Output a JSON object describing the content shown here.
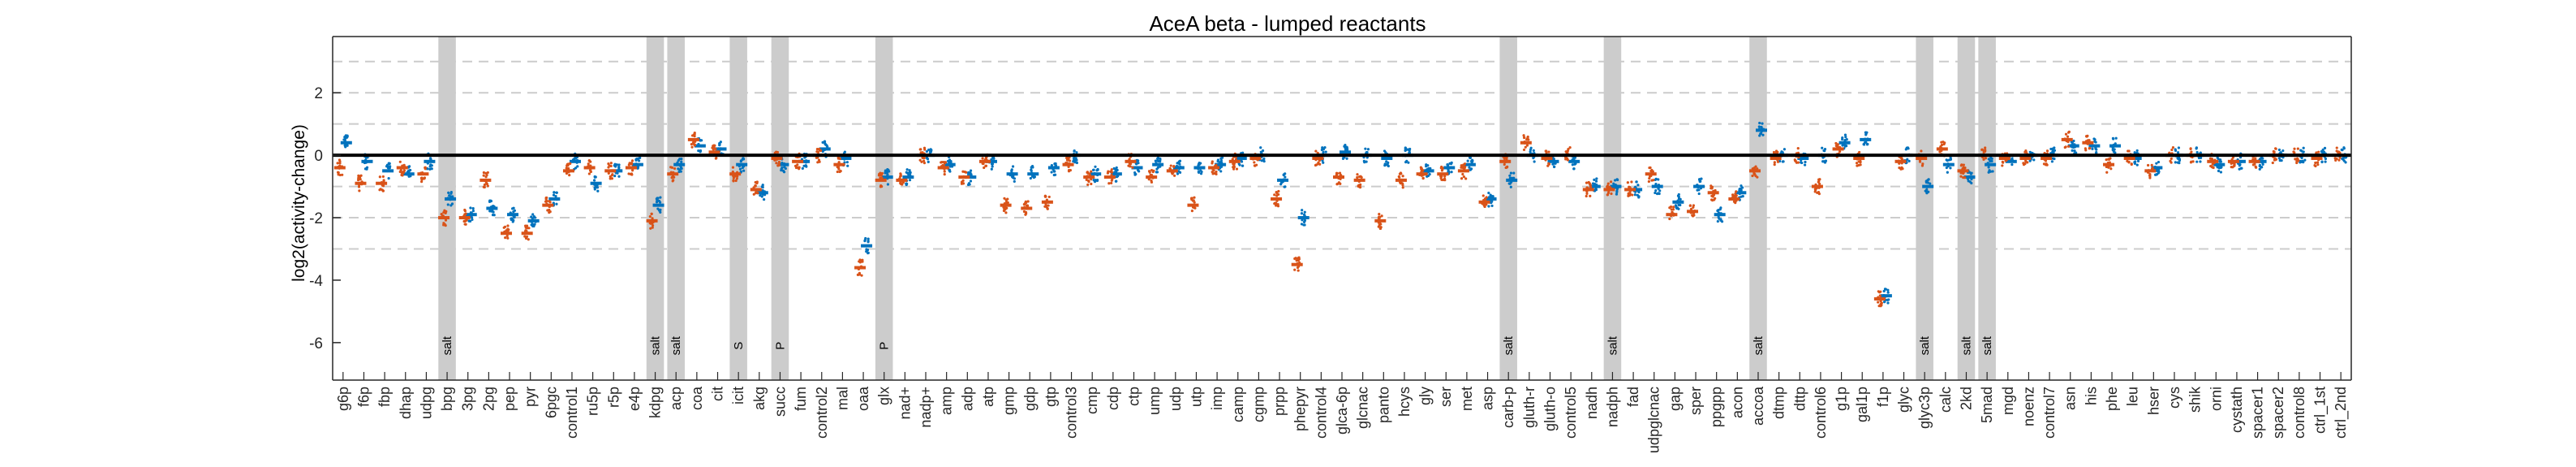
{
  "chart_data": {
    "type": "scatter",
    "title": "AceA beta - lumped reactants",
    "xlabel": "",
    "ylabel": "log2(activity-change)",
    "ylim": [
      -7.2,
      3.8
    ],
    "yticks": [
      -6,
      -4,
      -2,
      0,
      2
    ],
    "ytick_labels": [
      "-6",
      "-4",
      "-2",
      "0",
      "2"
    ],
    "dashed_gridlines_y": [
      -3,
      -2,
      -1,
      1,
      2,
      3
    ],
    "zero_line_y": 0,
    "grid": false,
    "box": true,
    "colors": {
      "series_a": "#0072BD",
      "series_b": "#D95319",
      "series_c": "#4DBEEE",
      "shade": "#cccccc",
      "grid": "#cccccc",
      "zero": "#000000"
    },
    "categories": [
      "g6p",
      "f6p",
      "fbp",
      "dhap",
      "udpg",
      "bpg",
      "3pg",
      "2pg",
      "pep",
      "pyr",
      "6pgc",
      "control1",
      "ru5p",
      "r5p",
      "e4p",
      "kdpg",
      "acp",
      "coa",
      "cit",
      "icit",
      "akg",
      "succ",
      "fum",
      "control2",
      "mal",
      "oaa",
      "glx",
      "nad+",
      "nadp+",
      "amp",
      "adp",
      "atp",
      "gmp",
      "gdp",
      "gtp",
      "control3",
      "cmp",
      "cdp",
      "ctp",
      "ump",
      "udp",
      "utp",
      "imp",
      "camp",
      "cgmp",
      "prpp",
      "phepyr",
      "control4",
      "glca-6p",
      "glcnac",
      "panto",
      "hcys",
      "gly",
      "ser",
      "met",
      "asp",
      "carb-p",
      "gluth-r",
      "gluth-o",
      "control5",
      "nadh",
      "nadph",
      "fad",
      "udpglcnac",
      "gap",
      "sper",
      "ppgpp",
      "acon",
      "accoa",
      "dtmp",
      "dttp",
      "control6",
      "g1p",
      "gal1p",
      "f1p",
      "glyc",
      "glyc3p",
      "calc",
      "2kd",
      "5mad",
      "mgd",
      "noenz",
      "control7",
      "asn",
      "his",
      "phe",
      "leu",
      "hser",
      "cys",
      "shik",
      "orni",
      "cystath",
      "spacer1",
      "spacer2",
      "control8",
      "ctrl_1st",
      "ctrl_2nd"
    ],
    "shaded_categories": [
      "bpg",
      "kdpg",
      "acp",
      "icit",
      "succ",
      "glx",
      "carb-p",
      "nadph",
      "accoa",
      "glyc3p",
      "2kd",
      "5mad"
    ],
    "shade_labels": [
      {
        "category": "bpg",
        "label": "salt"
      },
      {
        "category": "kdpg",
        "label": "salt"
      },
      {
        "category": "acp",
        "label": "salt"
      },
      {
        "category": "icit",
        "label": "S"
      },
      {
        "category": "succ",
        "label": "P"
      },
      {
        "category": "glx",
        "label": "P"
      },
      {
        "category": "carb-p",
        "label": "salt"
      },
      {
        "category": "nadph",
        "label": "salt"
      },
      {
        "category": "accoa",
        "label": "salt"
      },
      {
        "category": "glyc3p",
        "label": "salt"
      },
      {
        "category": "2kd",
        "label": "salt"
      },
      {
        "category": "5mad",
        "label": "salt"
      }
    ],
    "series": [
      {
        "color": "#0072BD",
        "values": [
          0.4,
          -0.2,
          -0.5,
          -0.6,
          -0.2,
          -1.4,
          -1.9,
          -1.7,
          -1.9,
          -2.1,
          -1.4,
          -0.2,
          -0.9,
          -0.5,
          -0.3,
          -1.6,
          -0.3,
          0.3,
          0.2,
          -0.3,
          -1.2,
          -0.3,
          -0.2,
          0.2,
          -0.1,
          -2.9,
          -0.7,
          -0.7,
          0.0,
          -0.3,
          -0.7,
          -0.2,
          -0.6,
          -0.6,
          -0.4,
          0.0,
          -0.6,
          -0.6,
          -0.4,
          -0.3,
          -0.4,
          -0.4,
          -0.3,
          -0.1,
          0.0,
          -0.8,
          -2.0,
          0.0,
          0.1,
          0.0,
          -0.1,
          0.0,
          -0.5,
          -0.4,
          -0.3,
          -1.4,
          -0.8,
          0.0,
          -0.2,
          -0.2,
          -1.0,
          -1.0,
          -1.1,
          -1.0,
          -1.5,
          -1.0,
          -1.9,
          -1.2,
          0.8,
          0.0,
          -0.1,
          0.0,
          0.4,
          0.5,
          -4.5,
          0.0,
          -1.0,
          -0.3,
          -0.7,
          -0.3,
          -0.2,
          0.0,
          0.0,
          0.3,
          0.3,
          0.3,
          -0.1,
          -0.4,
          0.0,
          0.0,
          -0.3,
          -0.2,
          -0.2,
          0.0,
          0.0,
          0.0,
          0.0
        ]
      },
      {
        "color": "#D95319",
        "values": [
          -0.4,
          -0.9,
          -0.9,
          -0.4,
          -0.6,
          -2.0,
          -2.0,
          -0.8,
          -2.5,
          -2.5,
          -1.6,
          -0.5,
          -0.4,
          -0.5,
          -0.4,
          -2.1,
          -0.6,
          0.5,
          0.1,
          -0.6,
          -1.1,
          -0.1,
          -0.2,
          0.0,
          -0.3,
          -3.6,
          -0.8,
          -0.8,
          0.0,
          -0.4,
          -0.7,
          -0.2,
          -1.6,
          -1.7,
          -1.5,
          -0.3,
          -0.7,
          -0.7,
          -0.2,
          -0.7,
          -0.5,
          -1.6,
          -0.4,
          -0.2,
          -0.1,
          -1.4,
          -3.5,
          -0.1,
          -0.7,
          -0.8,
          -2.1,
          -0.8,
          -0.6,
          -0.6,
          -0.5,
          -1.5,
          -0.2,
          0.4,
          -0.1,
          0.0,
          -1.1,
          -1.1,
          -1.1,
          -0.6,
          -1.9,
          -1.8,
          -1.2,
          -1.4,
          -0.5,
          -0.1,
          0.0,
          -1.0,
          0.2,
          -0.1,
          -4.6,
          -0.2,
          -0.1,
          0.2,
          -0.5,
          0.0,
          -0.1,
          -0.1,
          -0.1,
          0.5,
          0.4,
          -0.3,
          -0.1,
          -0.5,
          0.0,
          0.0,
          -0.2,
          -0.2,
          -0.2,
          0.0,
          0.0,
          -0.1,
          0.0
        ]
      }
    ]
  }
}
